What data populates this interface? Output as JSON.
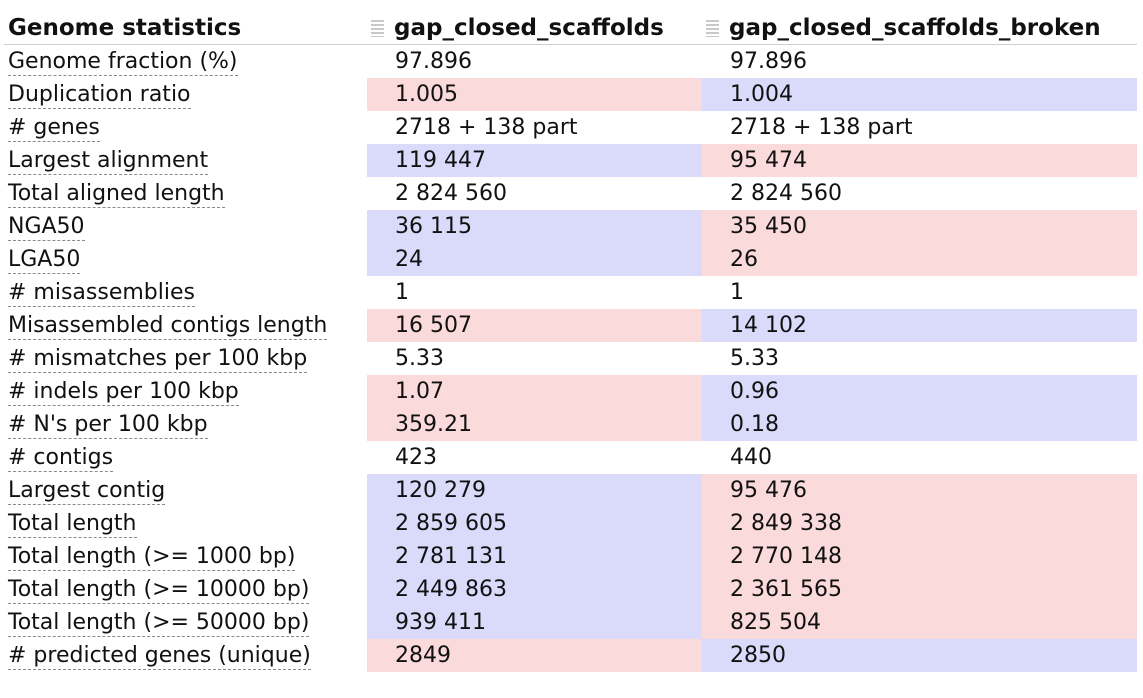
{
  "header": {
    "title": "Genome statistics",
    "columns": [
      "gap_closed_scaffolds",
      "gap_closed_scaffolds_broken"
    ]
  },
  "colors": {
    "worse": "#fadadb",
    "better": "#dadafa"
  },
  "rows": [
    {
      "label": "Genome fraction (%)",
      "a": "97.896",
      "b": "97.896",
      "a_state": "",
      "b_state": ""
    },
    {
      "label": "Duplication ratio",
      "a": "1.005",
      "b": "1.004",
      "a_state": "bad",
      "b_state": "good"
    },
    {
      "label": "# genes",
      "a": "2718 + 138 part",
      "b": "2718 + 138 part",
      "a_state": "",
      "b_state": ""
    },
    {
      "label": "Largest alignment",
      "a": "119 447",
      "b": "95 474",
      "a_state": "good",
      "b_state": "bad"
    },
    {
      "label": "Total aligned length",
      "a": "2 824 560",
      "b": "2 824 560",
      "a_state": "",
      "b_state": ""
    },
    {
      "label": "NGA50",
      "a": "36 115",
      "b": "35 450",
      "a_state": "good",
      "b_state": "bad"
    },
    {
      "label": "LGA50",
      "a": "24",
      "b": "26",
      "a_state": "good",
      "b_state": "bad"
    },
    {
      "label": "# misassemblies",
      "a": "1",
      "b": "1",
      "a_state": "",
      "b_state": ""
    },
    {
      "label": "Misassembled contigs length",
      "a": "16 507",
      "b": "14 102",
      "a_state": "bad",
      "b_state": "good"
    },
    {
      "label": "# mismatches per 100 kbp",
      "a": "5.33",
      "b": "5.33",
      "a_state": "",
      "b_state": ""
    },
    {
      "label": "# indels per 100 kbp",
      "a": "1.07",
      "b": "0.96",
      "a_state": "bad",
      "b_state": "good"
    },
    {
      "label": "# N's per 100 kbp",
      "a": "359.21",
      "b": "0.18",
      "a_state": "bad",
      "b_state": "good"
    },
    {
      "label": "# contigs",
      "a": "423",
      "b": "440",
      "a_state": "",
      "b_state": ""
    },
    {
      "label": "Largest contig",
      "a": "120 279",
      "b": "95 476",
      "a_state": "good",
      "b_state": "bad"
    },
    {
      "label": "Total length",
      "a": "2 859 605",
      "b": "2 849 338",
      "a_state": "good",
      "b_state": "bad"
    },
    {
      "label": "Total length (>= 1000 bp)",
      "a": "2 781 131",
      "b": "2 770 148",
      "a_state": "good",
      "b_state": "bad"
    },
    {
      "label": "Total length (>= 10000 bp)",
      "a": "2 449 863",
      "b": "2 361 565",
      "a_state": "good",
      "b_state": "bad"
    },
    {
      "label": "Total length (>= 50000 bp)",
      "a": "939 411",
      "b": "825 504",
      "a_state": "good",
      "b_state": "bad"
    },
    {
      "label": "# predicted genes (unique)",
      "a": "2849",
      "b": "2850",
      "a_state": "bad",
      "b_state": "good"
    }
  ]
}
